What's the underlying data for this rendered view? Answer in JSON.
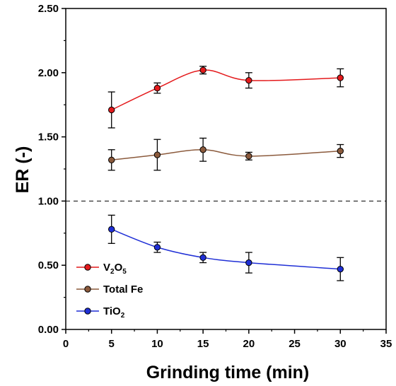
{
  "chart_data": {
    "type": "line",
    "xlabel": "Grinding time (min)",
    "ylabel": "ER (-)",
    "xlim": [
      0,
      35
    ],
    "ylim": [
      0.0,
      2.5
    ],
    "xticks": [
      "0",
      "5",
      "10",
      "15",
      "20",
      "25",
      "30",
      "35"
    ],
    "yticks": [
      "0.00",
      "0.50",
      "1.00",
      "1.50",
      "2.00",
      "2.50"
    ],
    "reference_line": {
      "y": 1.0,
      "style": "dashed"
    },
    "grid": false,
    "legend_position": "bottom-left",
    "x": [
      5,
      10,
      15,
      20,
      30
    ],
    "series": [
      {
        "name": "V2O5",
        "label_main": "V",
        "label_sub1": "2",
        "label_mid": "O",
        "label_sub2": "5",
        "color": "#e41a1c",
        "values": [
          1.71,
          1.88,
          2.02,
          1.94,
          1.96
        ],
        "errors": [
          0.14,
          0.04,
          0.03,
          0.06,
          0.07
        ]
      },
      {
        "name": "Total Fe",
        "label_main": "Total Fe",
        "color": "#8b5a3c",
        "values": [
          1.32,
          1.36,
          1.4,
          1.35,
          1.39
        ],
        "errors": [
          0.08,
          0.12,
          0.09,
          0.03,
          0.05
        ]
      },
      {
        "name": "TiO2",
        "label_main": "TiO",
        "label_sub1": "2",
        "color": "#1f2fd6",
        "values": [
          0.78,
          0.64,
          0.56,
          0.52,
          0.47
        ],
        "errors": [
          0.11,
          0.04,
          0.04,
          0.08,
          0.09
        ]
      }
    ]
  }
}
